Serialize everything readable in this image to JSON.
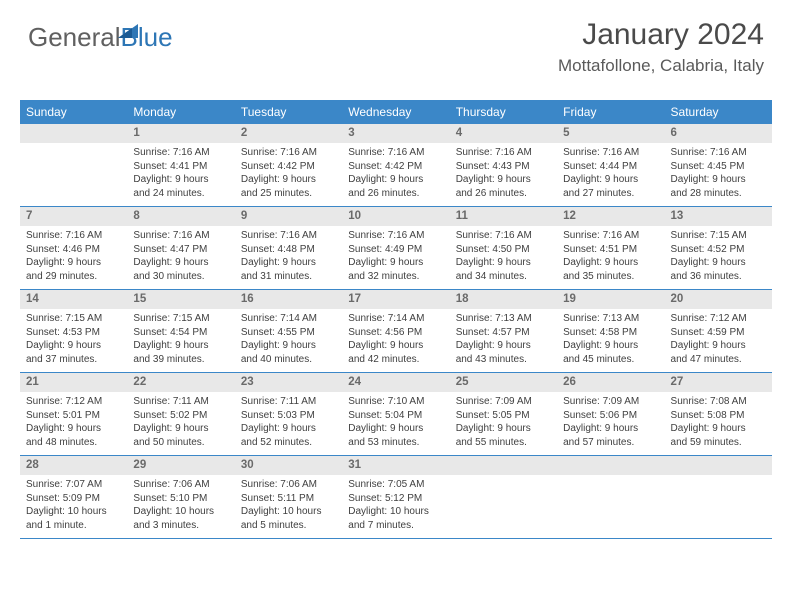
{
  "logo": {
    "text1": "General",
    "text2": "Blue",
    "color1": "#606060",
    "color2": "#2d76b5",
    "triangle_color": "#2d76b5"
  },
  "title": "January 2024",
  "location": "Mottafollone, Calabria, Italy",
  "styling": {
    "header_bg": "#3b87c8",
    "header_text_color": "#ffffff",
    "daynum_bg": "#e8e8e8",
    "daynum_color": "#6a6a6a",
    "body_text_color": "#404040",
    "week_border_color": "#3b87c8",
    "background": "#ffffff",
    "month_title_fontsize": 30,
    "location_fontsize": 17,
    "header_fontsize": 12,
    "daynum_fontsize": 11.5,
    "body_fontsize": 10
  },
  "weekdays": [
    "Sunday",
    "Monday",
    "Tuesday",
    "Wednesday",
    "Thursday",
    "Friday",
    "Saturday"
  ],
  "weeks": [
    [
      {
        "num": "",
        "lines": []
      },
      {
        "num": "1",
        "lines": [
          "Sunrise: 7:16 AM",
          "Sunset: 4:41 PM",
          "Daylight: 9 hours",
          "and 24 minutes."
        ]
      },
      {
        "num": "2",
        "lines": [
          "Sunrise: 7:16 AM",
          "Sunset: 4:42 PM",
          "Daylight: 9 hours",
          "and 25 minutes."
        ]
      },
      {
        "num": "3",
        "lines": [
          "Sunrise: 7:16 AM",
          "Sunset: 4:42 PM",
          "Daylight: 9 hours",
          "and 26 minutes."
        ]
      },
      {
        "num": "4",
        "lines": [
          "Sunrise: 7:16 AM",
          "Sunset: 4:43 PM",
          "Daylight: 9 hours",
          "and 26 minutes."
        ]
      },
      {
        "num": "5",
        "lines": [
          "Sunrise: 7:16 AM",
          "Sunset: 4:44 PM",
          "Daylight: 9 hours",
          "and 27 minutes."
        ]
      },
      {
        "num": "6",
        "lines": [
          "Sunrise: 7:16 AM",
          "Sunset: 4:45 PM",
          "Daylight: 9 hours",
          "and 28 minutes."
        ]
      }
    ],
    [
      {
        "num": "7",
        "lines": [
          "Sunrise: 7:16 AM",
          "Sunset: 4:46 PM",
          "Daylight: 9 hours",
          "and 29 minutes."
        ]
      },
      {
        "num": "8",
        "lines": [
          "Sunrise: 7:16 AM",
          "Sunset: 4:47 PM",
          "Daylight: 9 hours",
          "and 30 minutes."
        ]
      },
      {
        "num": "9",
        "lines": [
          "Sunrise: 7:16 AM",
          "Sunset: 4:48 PM",
          "Daylight: 9 hours",
          "and 31 minutes."
        ]
      },
      {
        "num": "10",
        "lines": [
          "Sunrise: 7:16 AM",
          "Sunset: 4:49 PM",
          "Daylight: 9 hours",
          "and 32 minutes."
        ]
      },
      {
        "num": "11",
        "lines": [
          "Sunrise: 7:16 AM",
          "Sunset: 4:50 PM",
          "Daylight: 9 hours",
          "and 34 minutes."
        ]
      },
      {
        "num": "12",
        "lines": [
          "Sunrise: 7:16 AM",
          "Sunset: 4:51 PM",
          "Daylight: 9 hours",
          "and 35 minutes."
        ]
      },
      {
        "num": "13",
        "lines": [
          "Sunrise: 7:15 AM",
          "Sunset: 4:52 PM",
          "Daylight: 9 hours",
          "and 36 minutes."
        ]
      }
    ],
    [
      {
        "num": "14",
        "lines": [
          "Sunrise: 7:15 AM",
          "Sunset: 4:53 PM",
          "Daylight: 9 hours",
          "and 37 minutes."
        ]
      },
      {
        "num": "15",
        "lines": [
          "Sunrise: 7:15 AM",
          "Sunset: 4:54 PM",
          "Daylight: 9 hours",
          "and 39 minutes."
        ]
      },
      {
        "num": "16",
        "lines": [
          "Sunrise: 7:14 AM",
          "Sunset: 4:55 PM",
          "Daylight: 9 hours",
          "and 40 minutes."
        ]
      },
      {
        "num": "17",
        "lines": [
          "Sunrise: 7:14 AM",
          "Sunset: 4:56 PM",
          "Daylight: 9 hours",
          "and 42 minutes."
        ]
      },
      {
        "num": "18",
        "lines": [
          "Sunrise: 7:13 AM",
          "Sunset: 4:57 PM",
          "Daylight: 9 hours",
          "and 43 minutes."
        ]
      },
      {
        "num": "19",
        "lines": [
          "Sunrise: 7:13 AM",
          "Sunset: 4:58 PM",
          "Daylight: 9 hours",
          "and 45 minutes."
        ]
      },
      {
        "num": "20",
        "lines": [
          "Sunrise: 7:12 AM",
          "Sunset: 4:59 PM",
          "Daylight: 9 hours",
          "and 47 minutes."
        ]
      }
    ],
    [
      {
        "num": "21",
        "lines": [
          "Sunrise: 7:12 AM",
          "Sunset: 5:01 PM",
          "Daylight: 9 hours",
          "and 48 minutes."
        ]
      },
      {
        "num": "22",
        "lines": [
          "Sunrise: 7:11 AM",
          "Sunset: 5:02 PM",
          "Daylight: 9 hours",
          "and 50 minutes."
        ]
      },
      {
        "num": "23",
        "lines": [
          "Sunrise: 7:11 AM",
          "Sunset: 5:03 PM",
          "Daylight: 9 hours",
          "and 52 minutes."
        ]
      },
      {
        "num": "24",
        "lines": [
          "Sunrise: 7:10 AM",
          "Sunset: 5:04 PM",
          "Daylight: 9 hours",
          "and 53 minutes."
        ]
      },
      {
        "num": "25",
        "lines": [
          "Sunrise: 7:09 AM",
          "Sunset: 5:05 PM",
          "Daylight: 9 hours",
          "and 55 minutes."
        ]
      },
      {
        "num": "26",
        "lines": [
          "Sunrise: 7:09 AM",
          "Sunset: 5:06 PM",
          "Daylight: 9 hours",
          "and 57 minutes."
        ]
      },
      {
        "num": "27",
        "lines": [
          "Sunrise: 7:08 AM",
          "Sunset: 5:08 PM",
          "Daylight: 9 hours",
          "and 59 minutes."
        ]
      }
    ],
    [
      {
        "num": "28",
        "lines": [
          "Sunrise: 7:07 AM",
          "Sunset: 5:09 PM",
          "Daylight: 10 hours",
          "and 1 minute."
        ]
      },
      {
        "num": "29",
        "lines": [
          "Sunrise: 7:06 AM",
          "Sunset: 5:10 PM",
          "Daylight: 10 hours",
          "and 3 minutes."
        ]
      },
      {
        "num": "30",
        "lines": [
          "Sunrise: 7:06 AM",
          "Sunset: 5:11 PM",
          "Daylight: 10 hours",
          "and 5 minutes."
        ]
      },
      {
        "num": "31",
        "lines": [
          "Sunrise: 7:05 AM",
          "Sunset: 5:12 PM",
          "Daylight: 10 hours",
          "and 7 minutes."
        ]
      },
      {
        "num": "",
        "lines": []
      },
      {
        "num": "",
        "lines": []
      },
      {
        "num": "",
        "lines": []
      }
    ]
  ]
}
